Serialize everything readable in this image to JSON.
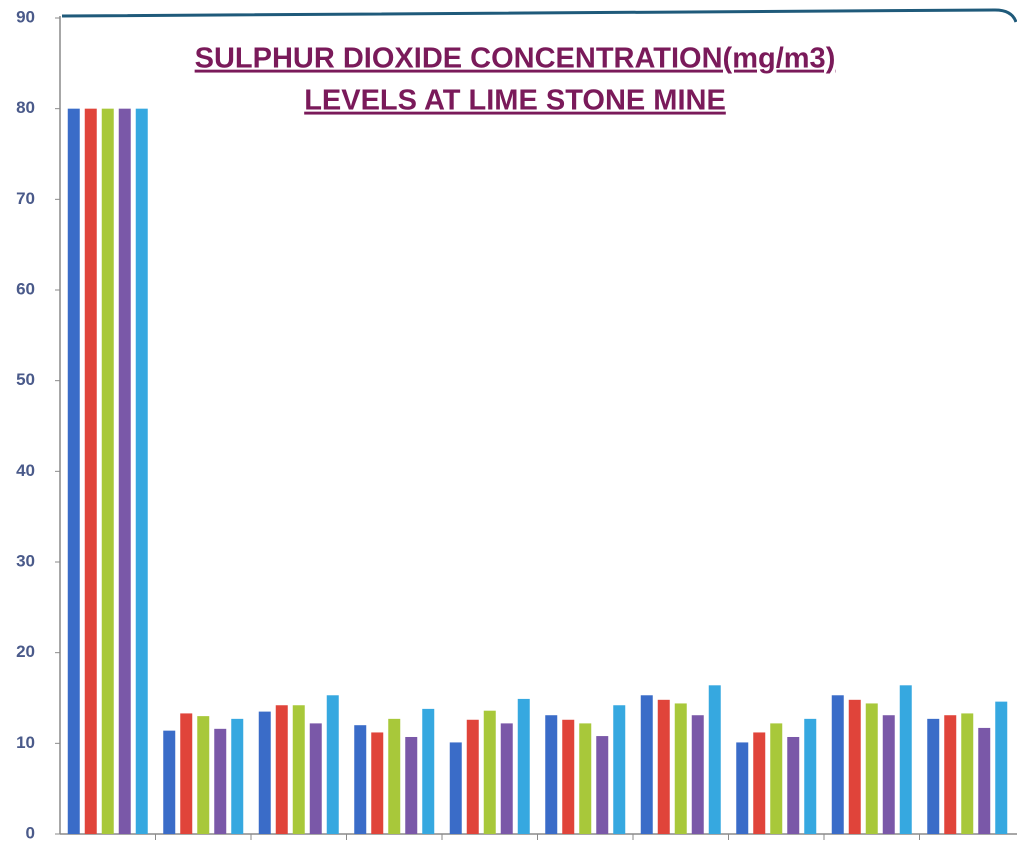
{
  "chart_data": {
    "type": "bar",
    "title": "SULPHUR DIOXIDE CONCENTRATION(mg/m3)",
    "subtitle": "LEVELS AT  LIME STONE  MINE",
    "categories": [
      null,
      null,
      null,
      null,
      null,
      null,
      null,
      null,
      null,
      null
    ],
    "series": [
      {
        "color": "#3a6cc8",
        "values": [
          80,
          11.4,
          13.5,
          12.0,
          10.1,
          13.1,
          15.3,
          10.1,
          15.3,
          12.7
        ]
      },
      {
        "color": "#e0443a",
        "values": [
          80,
          13.3,
          14.2,
          11.2,
          12.6,
          12.6,
          14.8,
          11.2,
          14.8,
          13.1
        ]
      },
      {
        "color": "#a8c83a",
        "values": [
          80,
          13.0,
          14.2,
          12.7,
          13.6,
          12.2,
          14.4,
          12.2,
          14.4,
          13.3
        ]
      },
      {
        "color": "#7a58a8",
        "values": [
          80,
          11.6,
          12.2,
          10.7,
          12.2,
          10.8,
          13.1,
          10.7,
          13.1,
          11.7
        ]
      },
      {
        "color": "#36a8e0",
        "values": [
          80,
          12.7,
          15.3,
          13.8,
          14.9,
          14.2,
          16.4,
          12.7,
          16.4,
          14.6
        ]
      }
    ],
    "ylim": [
      0,
      90
    ],
    "yticks": [
      0,
      10,
      20,
      30,
      40,
      50,
      60,
      70,
      80,
      90
    ],
    "grid": false
  }
}
